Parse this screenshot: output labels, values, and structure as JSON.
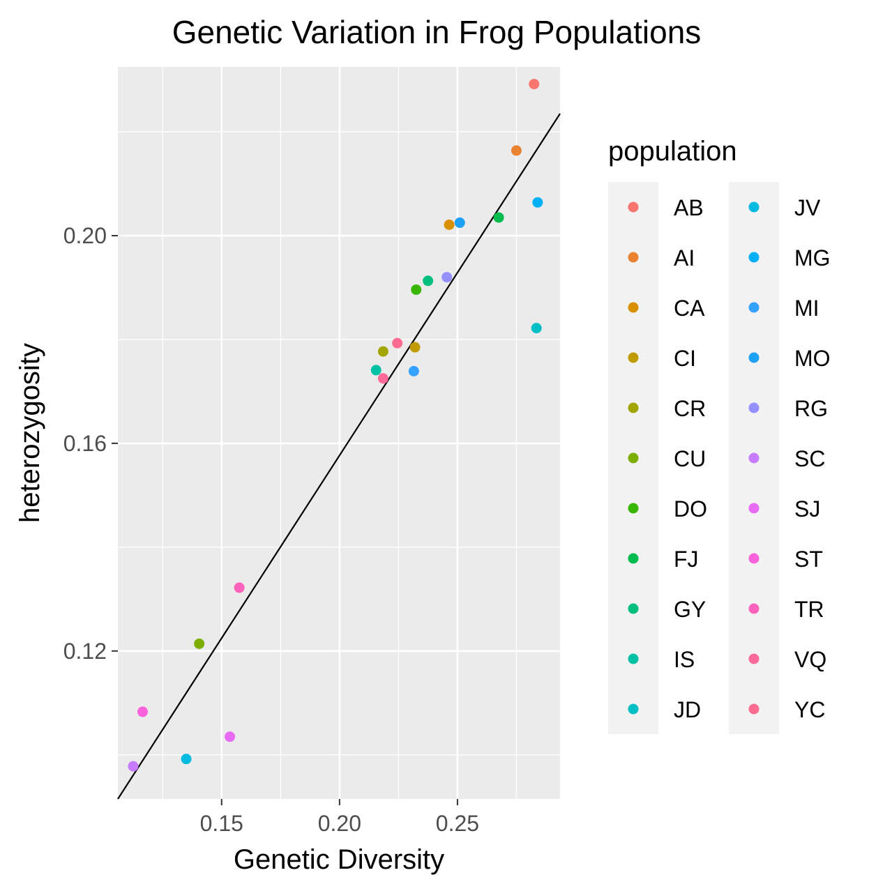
{
  "chart_data": {
    "type": "scatter",
    "title": "Genetic Variation in Frog Populations",
    "xlabel": "Genetic Diversity",
    "ylabel": "heterozygosity",
    "xlim": [
      0.106,
      0.2935
    ],
    "ylim": [
      0.0915,
      0.2325
    ],
    "x_ticks": [
      {
        "value": 0.15,
        "label": "0.15"
      },
      {
        "value": 0.2,
        "label": "0.20"
      },
      {
        "value": 0.25,
        "label": "0.25"
      }
    ],
    "y_ticks": [
      {
        "value": 0.12,
        "label": "0.12"
      },
      {
        "value": 0.16,
        "label": "0.16"
      },
      {
        "value": 0.2,
        "label": "0.20"
      }
    ],
    "x_minor": [
      0.125,
      0.175,
      0.225,
      0.275
    ],
    "y_minor": [
      0.1,
      0.14,
      0.18,
      0.22
    ],
    "grid": true,
    "background": "#ebebeb",
    "trend_line": {
      "x": [
        0.106,
        0.2935
      ],
      "y": [
        0.0915,
        0.2235
      ],
      "color": "#000000"
    },
    "legend": {
      "title": "population",
      "placement": "right",
      "columns": 2
    },
    "points": [
      {
        "name": "AB",
        "x": 0.2825,
        "y": 0.2292,
        "color": "#F8766D"
      },
      {
        "name": "AI",
        "x": 0.275,
        "y": 0.2164,
        "color": "#EA8331"
      },
      {
        "name": "CA",
        "x": 0.2465,
        "y": 0.2021,
        "color": "#D89000"
      },
      {
        "name": "CI",
        "x": 0.232,
        "y": 0.1785,
        "color": "#C09B00"
      },
      {
        "name": "CR",
        "x": 0.2185,
        "y": 0.1777,
        "color": "#A3A500"
      },
      {
        "name": "CU",
        "x": 0.1405,
        "y": 0.1214,
        "color": "#7CAE00"
      },
      {
        "name": "DO",
        "x": 0.2325,
        "y": 0.1896,
        "color": "#39B600"
      },
      {
        "name": "FJ",
        "x": 0.2675,
        "y": 0.2035,
        "color": "#00BB4E"
      },
      {
        "name": "GY",
        "x": 0.2375,
        "y": 0.1913,
        "color": "#00BF7D"
      },
      {
        "name": "IS",
        "x": 0.2155,
        "y": 0.1741,
        "color": "#00C1A3"
      },
      {
        "name": "JD",
        "x": 0.2835,
        "y": 0.1822,
        "color": "#00BFC4"
      },
      {
        "name": "JV",
        "x": 0.135,
        "y": 0.0992,
        "color": "#00BAE0"
      },
      {
        "name": "MG",
        "x": 0.284,
        "y": 0.2064,
        "color": "#00B0F6"
      },
      {
        "name": "MI",
        "x": 0.2315,
        "y": 0.1739,
        "color": "#35A2FF"
      },
      {
        "name": "MO",
        "x": 0.251,
        "y": 0.2025,
        "color": "#1EA0F5"
      },
      {
        "name": "RG",
        "x": 0.2455,
        "y": 0.192,
        "color": "#9590FF"
      },
      {
        "name": "SC",
        "x": 0.1125,
        "y": 0.0978,
        "color": "#C77CFF"
      },
      {
        "name": "SJ",
        "x": 0.1535,
        "y": 0.1035,
        "color": "#E76BF3"
      },
      {
        "name": "ST",
        "x": 0.1165,
        "y": 0.1083,
        "color": "#FA62DB"
      },
      {
        "name": "TR",
        "x": 0.1575,
        "y": 0.1322,
        "color": "#FF62BC"
      },
      {
        "name": "VQ",
        "x": 0.2185,
        "y": 0.1725,
        "color": "#FF6A98"
      },
      {
        "name": "YC",
        "x": 0.2245,
        "y": 0.1793,
        "color": "#FF6C91"
      }
    ]
  }
}
